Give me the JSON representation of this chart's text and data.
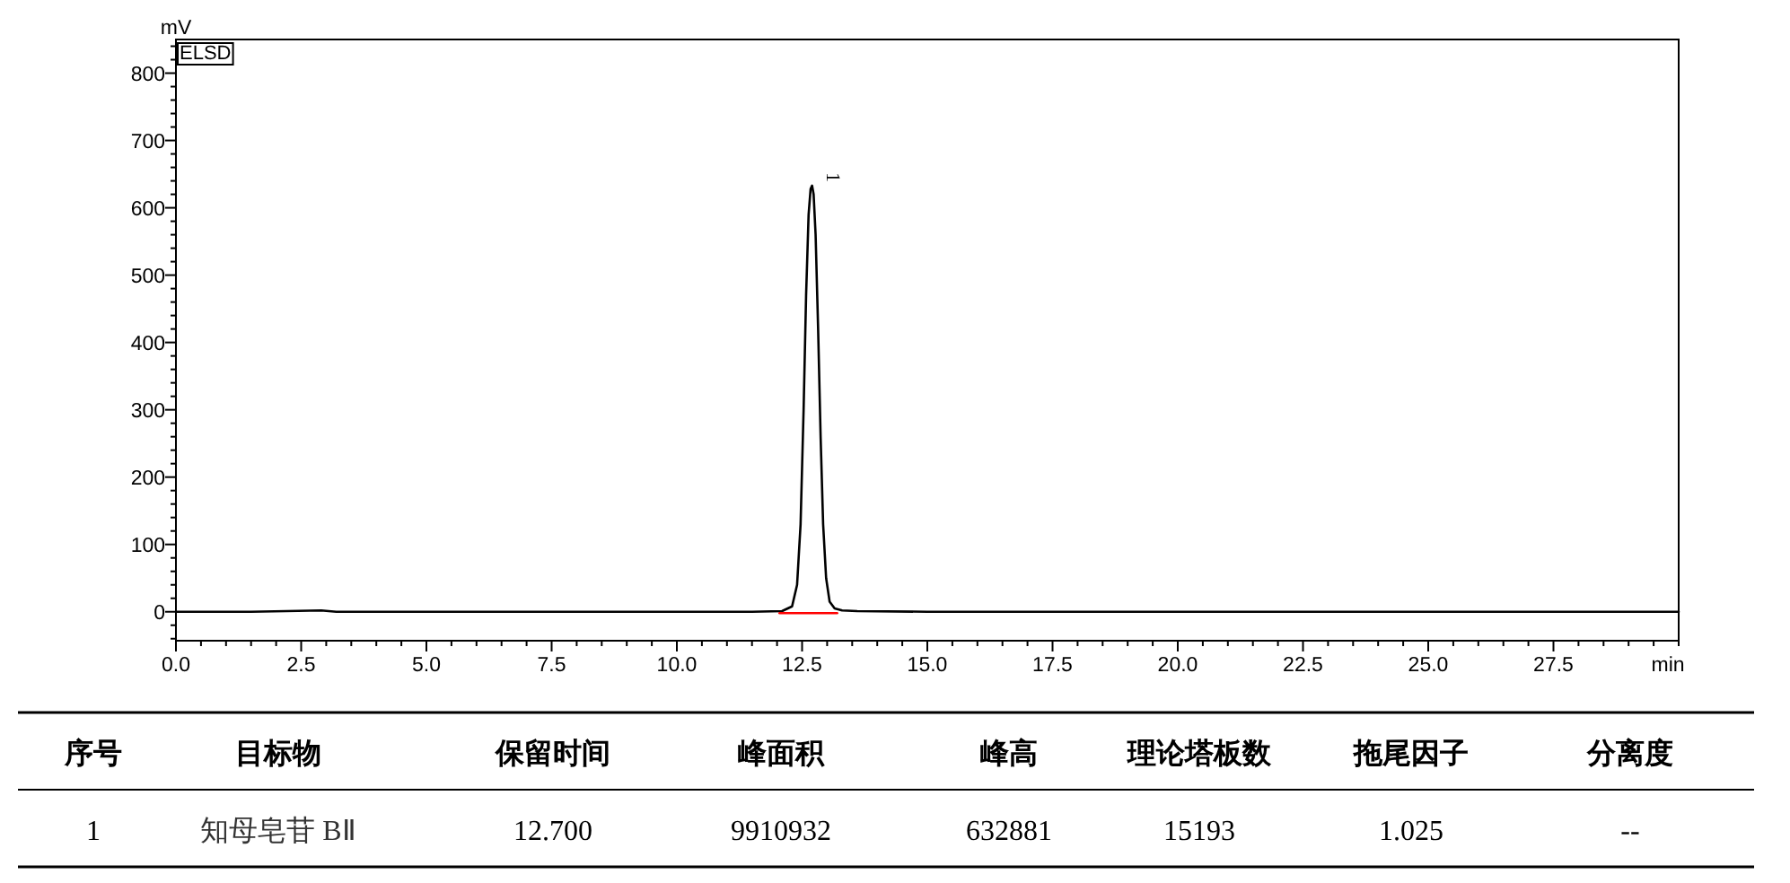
{
  "chart_data": {
    "type": "line",
    "xlabel": "min",
    "ylabel": "mV",
    "xlim": [
      0,
      30
    ],
    "ylim": [
      -43,
      850
    ],
    "xticks": [
      {
        "value": 0,
        "label": "0.0"
      },
      {
        "value": 0.5,
        "label": null
      },
      {
        "value": 1,
        "label": null
      },
      {
        "value": 1.5,
        "label": null
      },
      {
        "value": 2,
        "label": null
      },
      2.5,
      {
        "value": 3,
        "label": null
      },
      {
        "value": 3.5,
        "label": null
      },
      {
        "value": 4,
        "label": null
      },
      {
        "value": 4.5,
        "label": null
      },
      {
        "value": 5,
        "label": "5.0"
      },
      {
        "value": 5.5,
        "label": null
      },
      {
        "value": 6,
        "label": null
      },
      {
        "value": 6.5,
        "label": null
      },
      {
        "value": 7,
        "label": null
      },
      7.5,
      {
        "value": 8,
        "label": null
      },
      {
        "value": 8.5,
        "label": null
      },
      {
        "value": 9,
        "label": null
      },
      {
        "value": 9.5,
        "label": null
      },
      {
        "value": 10,
        "label": "10.0"
      },
      {
        "value": 10.5,
        "label": null
      },
      {
        "value": 11,
        "label": null
      },
      {
        "value": 11.5,
        "label": null
      },
      {
        "value": 12,
        "label": null
      },
      12.5,
      {
        "value": 13,
        "label": null
      },
      {
        "value": 13.5,
        "label": null
      },
      {
        "value": 14,
        "label": null
      },
      {
        "value": 14.5,
        "label": null
      },
      {
        "value": 15,
        "label": "15.0"
      },
      {
        "value": 15.5,
        "label": null
      },
      {
        "value": 16,
        "label": null
      },
      {
        "value": 16.5,
        "label": null
      },
      {
        "value": 17,
        "label": null
      },
      17.5,
      {
        "value": 18,
        "label": null
      },
      {
        "value": 18.5,
        "label": null
      },
      {
        "value": 19,
        "label": null
      },
      {
        "value": 19.5,
        "label": null
      },
      {
        "value": 20,
        "label": "20.0"
      },
      {
        "value": 20.5,
        "label": null
      },
      {
        "value": 21,
        "label": null
      },
      {
        "value": 21.5,
        "label": null
      },
      {
        "value": 22,
        "label": null
      },
      22.5,
      {
        "value": 23,
        "label": null
      },
      {
        "value": 23.5,
        "label": null
      },
      {
        "value": 24,
        "label": null
      },
      {
        "value": 24.5,
        "label": null
      },
      {
        "value": 25,
        "label": "25.0"
      },
      {
        "value": 25.5,
        "label": null
      },
      {
        "value": 26,
        "label": null
      },
      {
        "value": 26.5,
        "label": null
      },
      {
        "value": 27,
        "label": null
      },
      27.5,
      {
        "value": 28,
        "label": null
      },
      {
        "value": 28.5,
        "label": null
      },
      {
        "value": 29,
        "label": null
      },
      {
        "value": 29.5,
        "label": null
      },
      {
        "value": 30,
        "label": null
      }
    ],
    "yticks": [
      {
        "value": -40,
        "label": null
      },
      {
        "value": -20,
        "label": null
      },
      0,
      {
        "value": 20,
        "label": null
      },
      {
        "value": 40,
        "label": null
      },
      {
        "value": 60,
        "label": null
      },
      {
        "value": 80,
        "label": null
      },
      100,
      {
        "value": 120,
        "label": null
      },
      {
        "value": 140,
        "label": null
      },
      {
        "value": 160,
        "label": null
      },
      {
        "value": 180,
        "label": null
      },
      200,
      {
        "value": 220,
        "label": null
      },
      {
        "value": 240,
        "label": null
      },
      {
        "value": 260,
        "label": null
      },
      {
        "value": 280,
        "label": null
      },
      300,
      {
        "value": 320,
        "label": null
      },
      {
        "value": 340,
        "label": null
      },
      {
        "value": 360,
        "label": null
      },
      {
        "value": 380,
        "label": null
      },
      400,
      {
        "value": 420,
        "label": null
      },
      {
        "value": 440,
        "label": null
      },
      {
        "value": 460,
        "label": null
      },
      {
        "value": 480,
        "label": null
      },
      500,
      {
        "value": 520,
        "label": null
      },
      {
        "value": 540,
        "label": null
      },
      {
        "value": 560,
        "label": null
      },
      {
        "value": 580,
        "label": null
      },
      600,
      {
        "value": 620,
        "label": null
      },
      {
        "value": 640,
        "label": null
      },
      {
        "value": 660,
        "label": null
      },
      {
        "value": 680,
        "label": null
      },
      700,
      {
        "value": 720,
        "label": null
      },
      {
        "value": 740,
        "label": null
      },
      {
        "value": 760,
        "label": null
      },
      {
        "value": 780,
        "label": null
      },
      800,
      {
        "value": 820,
        "label": null
      },
      {
        "value": 840,
        "label": null
      }
    ],
    "series": [
      {
        "color": "#000000",
        "x": [
          0,
          1.5,
          2.9,
          3.2,
          6,
          9,
          11.5,
          12.1,
          12.3,
          12.4,
          12.47,
          12.53,
          12.58,
          12.63,
          12.67,
          12.7,
          12.73,
          12.77,
          12.82,
          12.87,
          12.92,
          12.98,
          13.05,
          13.15,
          13.3,
          13.6,
          15,
          20,
          25,
          30
        ],
        "values": [
          0,
          0,
          2,
          0,
          0,
          0,
          0,
          1,
          8,
          40,
          130,
          300,
          470,
          590,
          628,
          632.881,
          620,
          560,
          420,
          260,
          130,
          50,
          15,
          5,
          2,
          1,
          0,
          0,
          0,
          0
        ]
      },
      {
        "color": "#ff0000",
        "x": [
          12.05,
          13.2
        ],
        "values": [
          -2,
          -2
        ]
      }
    ],
    "annotations": [
      "ELSD",
      {
        "text": "1",
        "x": 12.7,
        "y": 632.881
      },
      "序号",
      "目标物",
      "保留时间",
      "峰面积",
      "峰高",
      "理论塔板数",
      "拖尾因子",
      "分离度",
      "1",
      "知母皂苷 BⅡ",
      "12.700",
      "9910932",
      "632881",
      "15193",
      "1.025",
      "--"
    ]
  }
}
